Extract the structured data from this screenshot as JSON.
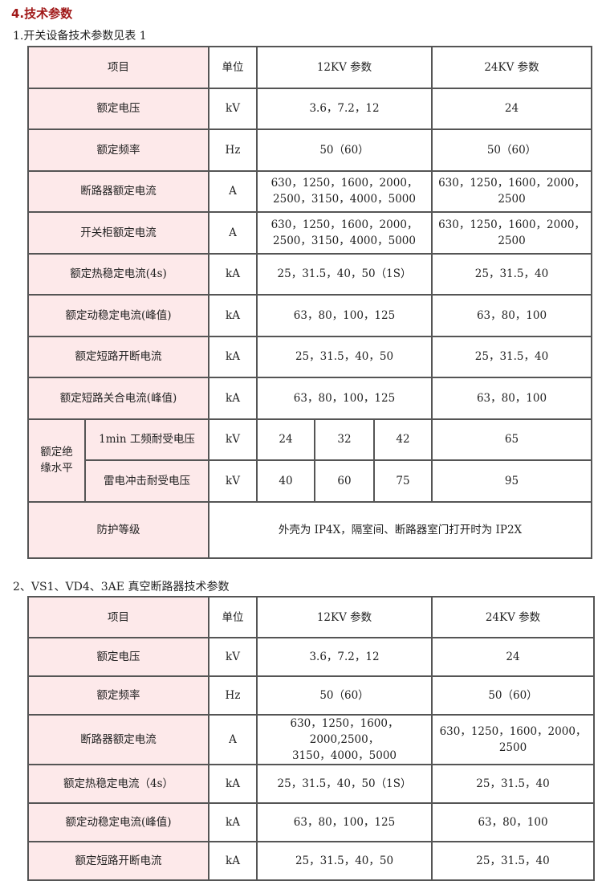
{
  "heading": "4.技术参数",
  "table1": {
    "caption": "1.开关设备技术参数见表 1",
    "header": {
      "item": "项目",
      "unit": "单位",
      "v12": "12KV 参数",
      "v24": "24KV 参数"
    },
    "rows": [
      {
        "label": "额定电压",
        "unit": "kV",
        "v12": [
          "3.6，7.2，12"
        ],
        "v24": [
          "24"
        ]
      },
      {
        "label": "额定频率",
        "unit": "Hz",
        "v12": [
          "50（60）"
        ],
        "v24": [
          "50（60）"
        ]
      },
      {
        "label": "断路器额定电流",
        "unit": "A",
        "v12": [
          "630，1250，1600，2000，",
          "2500，3150，4000，5000"
        ],
        "v24": [
          "630，1250，1600，2000，",
          "2500"
        ]
      },
      {
        "label": "开关柜额定电流",
        "unit": "A",
        "v12": [
          "630，1250，1600，2000，",
          "2500，3150，4000，5000"
        ],
        "v24": [
          "630，1250，1600，2000，",
          "2500"
        ]
      },
      {
        "label": "额定热稳定电流(4s)",
        "unit": "kA",
        "v12": [
          "25，31.5，40，50（1S）"
        ],
        "v24": [
          "25，31.5，40"
        ]
      },
      {
        "label": "额定动稳定电流(峰值)",
        "unit": "kA",
        "v12": [
          "63，80，100，125"
        ],
        "v24": [
          "63，80，100"
        ]
      },
      {
        "label": "额定短路开断电流",
        "unit": "kA",
        "v12": [
          "25，31.5，40，50"
        ],
        "v24": [
          "25，31.5，40"
        ]
      },
      {
        "label": "额定短路关合电流(峰值)",
        "unit": "kA",
        "v12": [
          "63，80，100，125"
        ],
        "v24": [
          "63，80，100"
        ]
      }
    ],
    "insulation": {
      "group_label": [
        "额定绝",
        "缘水平"
      ],
      "rows": [
        {
          "label": "1min 工频耐受电压",
          "unit": "kV",
          "v12": [
            "24",
            "32",
            "42"
          ],
          "v24": "65"
        },
        {
          "label": "雷电冲击耐受电压",
          "unit": "kV",
          "v12": [
            "40",
            "60",
            "75"
          ],
          "v24": "95"
        }
      ]
    },
    "protection": {
      "label": "防护等级",
      "value": "外壳为 IP4X，隔室间、断路器室门打开时为 IP2X"
    }
  },
  "table2": {
    "caption": "2、VS1、VD4、3AE 真空断路器技术参数",
    "header": {
      "item": "项目",
      "unit": "单位",
      "v12": "12KV 参数",
      "v24": "24KV 参数"
    },
    "rows": [
      {
        "label": "额定电压",
        "unit": "kV",
        "v12": [
          "3.6，7.2，12"
        ],
        "v24": [
          "24"
        ]
      },
      {
        "label": "额定频率",
        "unit": "Hz",
        "v12": [
          "50（60）"
        ],
        "v24": [
          "50（60）"
        ]
      },
      {
        "label": "断路器额定电流",
        "unit": "A",
        "v12": [
          "630，1250，1600，2000,2500，",
          "3150，4000，5000"
        ],
        "v24": [
          "630，1250，1600，2000，",
          "2500"
        ]
      },
      {
        "label": "额定热稳定电流（4s）",
        "unit": "kA",
        "v12": [
          "25，31.5，40，50（1S）"
        ],
        "v24": [
          "25，31.5，40"
        ]
      },
      {
        "label": "额定动稳定电流(峰值)",
        "unit": "kA",
        "v12": [
          "63，80，100，125"
        ],
        "v24": [
          "63，80，100"
        ]
      },
      {
        "label": "额定短路开断电流",
        "unit": "kA",
        "v12": [
          "25，31.5，40，50"
        ],
        "v24": [
          "25，31.5，40"
        ]
      }
    ]
  },
  "colors": {
    "heading": "#a01818",
    "label_bg": "#fde9ea",
    "border": "#555555"
  }
}
